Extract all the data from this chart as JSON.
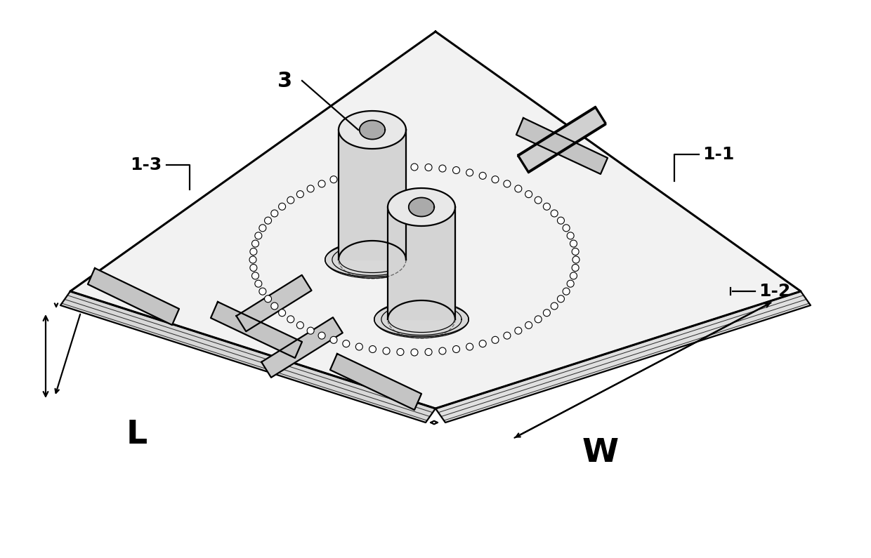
{
  "bg_color": "#ffffff",
  "line_color": "#000000",
  "fig_width": 12.4,
  "fig_height": 7.95,
  "lw_main": 1.6,
  "lw_thick": 2.2,
  "lw_thin": 0.8
}
